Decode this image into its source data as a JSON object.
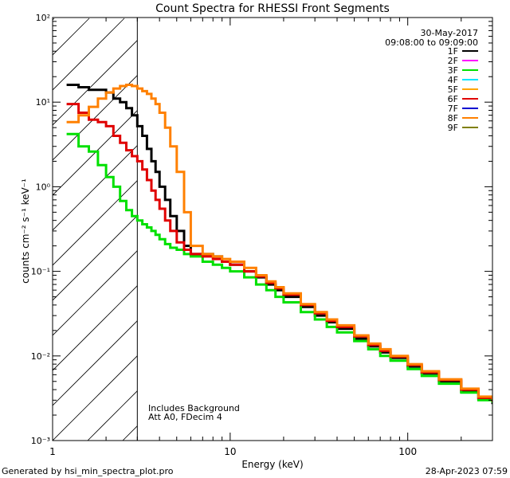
{
  "chart_data": {
    "type": "line",
    "title": "Count Spectra for RHESSI Front Segments",
    "xlabel": "Energy (keV)",
    "ylabel": "counts cm⁻² s⁻¹ keV⁻¹",
    "xscale": "log",
    "yscale": "log",
    "xlim": [
      1,
      300
    ],
    "ylim": [
      0.001,
      100
    ],
    "x_ticks": [
      {
        "value": 1,
        "label": "1"
      },
      {
        "value": 10,
        "label": "10"
      },
      {
        "value": 100,
        "label": "100"
      }
    ],
    "y_ticks": [
      {
        "value": 0.001,
        "label": "10⁻³"
      },
      {
        "value": 0.01,
        "label": "10⁻²"
      },
      {
        "value": 0.1,
        "label": "10⁻¹"
      },
      {
        "value": 1,
        "label": "10⁰"
      },
      {
        "value": 10,
        "label": "10¹"
      },
      {
        "value": 100,
        "label": "10²"
      }
    ],
    "shaded_region": {
      "x_from": 1,
      "x_to": 3,
      "style": "hatched"
    },
    "date": "30-May-2017",
    "time_range": "09:08:00 to 09:09:00",
    "annotations": [
      "Includes Background",
      "Att A0, FDecim 4"
    ],
    "footer_left": "Generated by hsi_min_spectra_plot.pro",
    "footer_right": "28-Apr-2023 07:59",
    "legend": [
      {
        "name": "1F",
        "color": "#000000"
      },
      {
        "name": "2F",
        "color": "#ff00ff"
      },
      {
        "name": "3F",
        "color": "#00e000"
      },
      {
        "name": "4F",
        "color": "#00e5ff"
      },
      {
        "name": "5F",
        "color": "#ffa500"
      },
      {
        "name": "6F",
        "color": "#e00000"
      },
      {
        "name": "7F",
        "color": "#0000d0"
      },
      {
        "name": "8F",
        "color": "#ff8000"
      },
      {
        "name": "9F",
        "color": "#808000"
      }
    ],
    "series": [
      {
        "name": "1F",
        "color": "#000000",
        "x": [
          1.2,
          1.4,
          1.6,
          1.8,
          2.0,
          2.2,
          2.4,
          2.6,
          2.8,
          3.0,
          3.2,
          3.4,
          3.6,
          3.8,
          4.0,
          4.3,
          4.6,
          5.0,
          5.5,
          6.0,
          7.0,
          8.0,
          9.0,
          10,
          12,
          14,
          16,
          18,
          20,
          25,
          30,
          35,
          40,
          50,
          60,
          70,
          80,
          100,
          120,
          150,
          200,
          250,
          300
        ],
        "y": [
          16,
          15,
          14,
          14,
          13,
          11,
          10,
          8.5,
          7,
          5.2,
          4.0,
          2.8,
          2.0,
          1.5,
          1.0,
          0.7,
          0.45,
          0.3,
          0.2,
          0.16,
          0.16,
          0.15,
          0.13,
          0.12,
          0.1,
          0.085,
          0.07,
          0.06,
          0.05,
          0.038,
          0.03,
          0.025,
          0.021,
          0.016,
          0.013,
          0.011,
          0.0095,
          0.0075,
          0.0062,
          0.005,
          0.0038,
          0.0031,
          0.0027
        ]
      },
      {
        "name": "3F",
        "color": "#00e000",
        "x": [
          1.2,
          1.4,
          1.6,
          1.8,
          2.0,
          2.2,
          2.4,
          2.6,
          2.8,
          3.0,
          3.2,
          3.4,
          3.6,
          3.8,
          4.0,
          4.3,
          4.6,
          5.0,
          5.5,
          6.0,
          7.0,
          8.0,
          9.0,
          10,
          12,
          14,
          16,
          18,
          20,
          25,
          30,
          35,
          40,
          50,
          60,
          70,
          80,
          100,
          120,
          150,
          200,
          250,
          300
        ],
        "y": [
          4.2,
          3.0,
          2.6,
          1.8,
          1.3,
          1.0,
          0.68,
          0.53,
          0.45,
          0.4,
          0.36,
          0.33,
          0.3,
          0.27,
          0.24,
          0.21,
          0.19,
          0.18,
          0.16,
          0.15,
          0.13,
          0.12,
          0.11,
          0.1,
          0.085,
          0.07,
          0.06,
          0.05,
          0.043,
          0.033,
          0.027,
          0.022,
          0.019,
          0.015,
          0.012,
          0.01,
          0.0088,
          0.007,
          0.0058,
          0.0047,
          0.0037,
          0.003,
          0.0028
        ]
      },
      {
        "name": "6F",
        "color": "#e00000",
        "x": [
          1.2,
          1.4,
          1.6,
          1.8,
          2.0,
          2.2,
          2.4,
          2.6,
          2.8,
          3.0,
          3.2,
          3.4,
          3.6,
          3.8,
          4.0,
          4.3,
          4.6,
          5.0,
          5.5,
          6.0,
          7.0,
          8.0,
          9.0,
          10,
          12,
          14,
          16,
          18,
          20,
          25,
          30,
          35,
          40,
          50,
          60,
          70,
          80,
          100,
          120,
          150,
          200,
          250,
          300
        ],
        "y": [
          9.5,
          7.5,
          6.2,
          5.8,
          5.2,
          4.0,
          3.3,
          2.7,
          2.3,
          2.0,
          1.6,
          1.2,
          0.9,
          0.7,
          0.55,
          0.4,
          0.3,
          0.22,
          0.18,
          0.16,
          0.15,
          0.14,
          0.13,
          0.12,
          0.1,
          0.087,
          0.073,
          0.063,
          0.053,
          0.04,
          0.032,
          0.026,
          0.022,
          0.017,
          0.0135,
          0.0115,
          0.0098,
          0.0078,
          0.0064,
          0.0052,
          0.004,
          0.0032,
          0.0029
        ]
      },
      {
        "name": "8F",
        "color": "#ff8000",
        "x": [
          1.2,
          1.4,
          1.6,
          1.8,
          2.0,
          2.2,
          2.4,
          2.6,
          2.8,
          3.0,
          3.2,
          3.4,
          3.6,
          3.8,
          4.0,
          4.3,
          4.6,
          5.0,
          5.5,
          6.0,
          7.0,
          8.0,
          9.0,
          10,
          12,
          14,
          16,
          18,
          20,
          25,
          30,
          35,
          40,
          50,
          60,
          70,
          80,
          100,
          120,
          150,
          200,
          250,
          300
        ],
        "y": [
          5.8,
          7.0,
          8.8,
          11,
          13,
          14.5,
          15.5,
          16,
          15.5,
          14.5,
          13.5,
          12.5,
          11,
          9.5,
          7.5,
          5,
          3,
          1.5,
          0.5,
          0.2,
          0.16,
          0.15,
          0.14,
          0.13,
          0.11,
          0.09,
          0.076,
          0.065,
          0.055,
          0.041,
          0.033,
          0.027,
          0.023,
          0.0175,
          0.014,
          0.012,
          0.01,
          0.008,
          0.0066,
          0.0053,
          0.0041,
          0.0033,
          0.003
        ]
      }
    ]
  }
}
